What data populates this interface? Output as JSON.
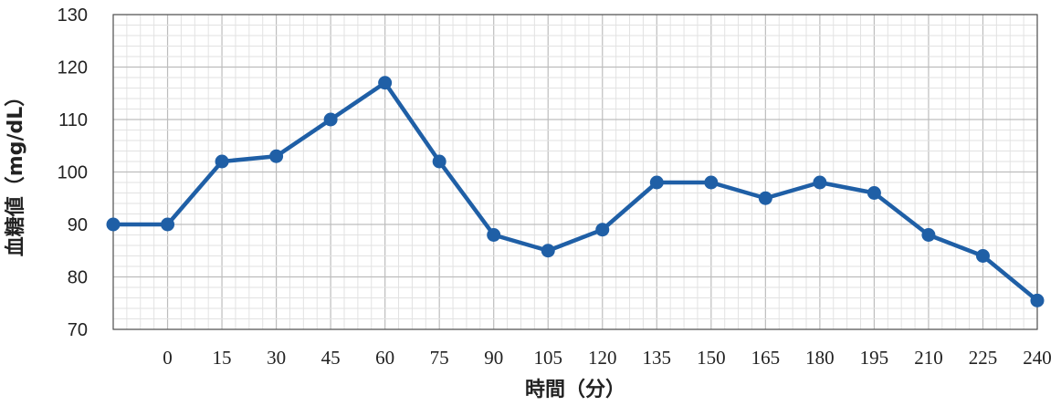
{
  "chart_data": {
    "type": "line",
    "title": "",
    "xlabel": "時間（分）",
    "ylabel": "血糖値（mg/dL）",
    "categories": [
      "",
      "0",
      "15",
      "30",
      "45",
      "60",
      "75",
      "90",
      "105",
      "120",
      "135",
      "150",
      "165",
      "180",
      "195",
      "210",
      "225",
      "240"
    ],
    "series": [
      {
        "values": [
          90,
          90,
          102,
          103,
          110,
          117,
          102,
          88,
          85,
          89,
          98,
          98,
          95,
          98,
          96,
          88,
          84,
          75.5
        ]
      }
    ],
    "ylim": [
      70,
      130
    ],
    "yticks": [
      "70",
      "80",
      "90",
      "100",
      "110",
      "120",
      "130"
    ],
    "grid": true,
    "legend": "none",
    "colors": {
      "line": "#1f5fa6",
      "grid": "#c8c8c8",
      "axis": "#555555"
    }
  }
}
